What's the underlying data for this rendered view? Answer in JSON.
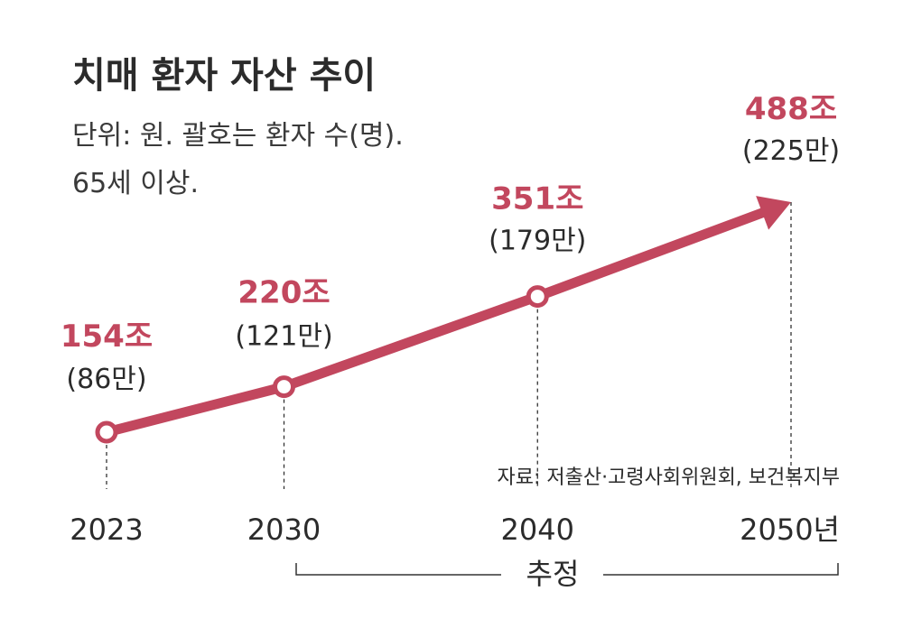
{
  "chart_data": {
    "type": "line",
    "title": "치매 환자 자산 추이",
    "subtitle_line1": "단위: 원. 괄호는 환자 수(명).",
    "subtitle_line2": "65세 이상.",
    "categories": [
      "2023",
      "2030",
      "2040",
      "2050년"
    ],
    "x": [
      2023,
      2030,
      2040,
      2050
    ],
    "series": [
      {
        "name": "치매 환자 자산",
        "values": [
          154,
          220,
          351,
          488
        ],
        "value_labels": [
          "154조",
          "220조",
          "351조",
          "488조"
        ]
      }
    ],
    "patient_labels": [
      "(86만)",
      "(121만)",
      "(179만)",
      "(225만)"
    ],
    "patients_10k": [
      86,
      121,
      179,
      225
    ],
    "estimate_label": "추정",
    "estimate_range": [
      "2030",
      "2050년"
    ],
    "source": "자료: 저출산·고령사회위원회, 보건복지부",
    "xlabel": "",
    "ylabel": "",
    "ylim": [
      0,
      550
    ],
    "colors": {
      "line": "#c2475e",
      "text": "#2b2b2b",
      "guide": "#333333"
    }
  }
}
